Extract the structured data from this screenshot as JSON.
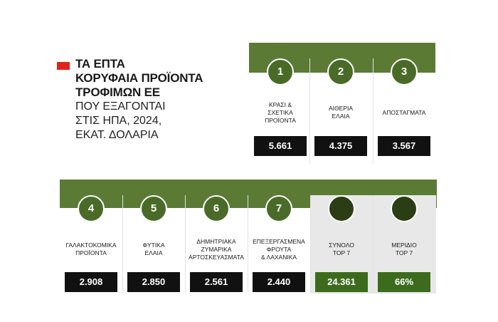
{
  "title": {
    "bold_lines": [
      "ΤΑ ΕΠΤΑ",
      "ΚΟΡΥΦΑΙΑ ΠΡΟΪΟΝΤΑ",
      "ΤΡΟΦΙΜΩΝ ΕΕ"
    ],
    "light_lines": [
      "ΠΟΥ ΕΞΑΓΟΝΤΑΙ",
      "ΣΤΙΣ ΗΠΑ, 2024,",
      "ΕΚΑΤ. ΔΟΛΑΡΙΑ"
    ]
  },
  "colors": {
    "band": "#5b7b35",
    "circle": "#4a6b28",
    "circle_dark": "#2b3d14",
    "value_box": "#111111",
    "value_box_total": "#3d6b1e",
    "accent_marker": "#e2231a",
    "total_cell_bg": "#e8e8e8"
  },
  "row1": [
    {
      "rank": "1",
      "label_lines": [
        "ΚΡΑΣΙ &",
        "ΣΧΕΤΙΚΑ",
        "ΠΡΟΪΟΝΤΑ"
      ],
      "value": "5.661"
    },
    {
      "rank": "2",
      "label_lines": [
        "ΑΙΘΕΡΙΑ",
        "ΕΛΑΙΑ"
      ],
      "value": "4.375"
    },
    {
      "rank": "3",
      "label_lines": [
        "ΑΠΟΣΤΑΓΜΑΤΑ"
      ],
      "value": "3.567"
    }
  ],
  "row2": [
    {
      "rank": "4",
      "label_lines": [
        "ΓΑΛΑΚΤΟΚΟΜΙΚΑ",
        "ΠΡΟΪΟΝΤΑ"
      ],
      "value": "2.908"
    },
    {
      "rank": "5",
      "label_lines": [
        "ΦΥΤΙΚΑ",
        "ΕΛΑΙΑ"
      ],
      "value": "2.850"
    },
    {
      "rank": "6",
      "label_lines": [
        "ΔΗΜΗΤΡΙΑΚΑ",
        "ΖΥΜΑΡΙΚΑ",
        "ΑΡΤΟΣΚΕΥΑΣΜΑΤΑ"
      ],
      "value": "2.561"
    },
    {
      "rank": "7",
      "label_lines": [
        "ΕΠΕΞΕΡΓΑΣΜΕΝΑ",
        "ΦΡΟΥΤΑ",
        "& ΛΑΧΑΝΙΚΑ"
      ],
      "value": "2.440"
    },
    {
      "rank": "",
      "label_lines": [
        "ΣΥΝΟΛΟ",
        "TOP 7"
      ],
      "value": "24.361",
      "total": true
    },
    {
      "rank": "",
      "label_lines": [
        "ΜΕΡΙΔΙΟ",
        "TOP 7"
      ],
      "value": "66%",
      "total": true
    }
  ]
}
